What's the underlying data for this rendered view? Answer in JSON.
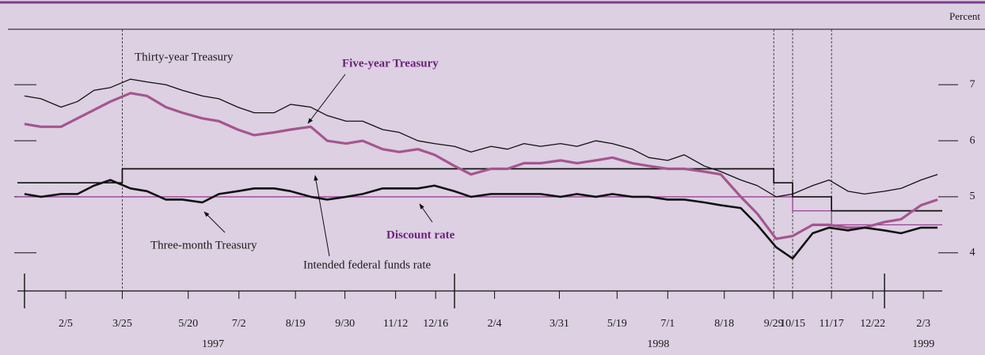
{
  "chart_data": {
    "type": "line",
    "ylabel": "Percent",
    "xlim": [
      "1996-12-26",
      "1999-02-19"
    ],
    "ylim": [
      3.32,
      7.99
    ],
    "yticks": [
      4,
      5,
      6,
      7
    ],
    "xticks": [
      {
        "value": "1997-02-05",
        "label": "2/5"
      },
      {
        "value": "1997-03-25",
        "label": "3/25"
      },
      {
        "value": "1997-05-20",
        "label": "5/20"
      },
      {
        "value": "1997-07-02",
        "label": "7/2"
      },
      {
        "value": "1997-08-19",
        "label": "8/19"
      },
      {
        "value": "1997-09-30",
        "label": "9/30"
      },
      {
        "value": "1997-11-12",
        "label": "11/12"
      },
      {
        "value": "1997-12-16",
        "label": "12/16"
      },
      {
        "value": "1998-02-04",
        "label": "2/4"
      },
      {
        "value": "1998-03-31",
        "label": "3/31"
      },
      {
        "value": "1998-05-19",
        "label": "5/19"
      },
      {
        "value": "1998-07-01",
        "label": "7/1"
      },
      {
        "value": "1998-08-18",
        "label": "8/18"
      },
      {
        "value": "1998-09-29",
        "label": "9/29"
      },
      {
        "value": "1998-10-15",
        "label": "10/15"
      },
      {
        "value": "1998-11-17",
        "label": "11/17"
      },
      {
        "value": "1998-12-22",
        "label": "12/22"
      },
      {
        "value": "1999-02-03",
        "label": "2/3"
      }
    ],
    "year_ticks": [
      {
        "value": "1997-01-01",
        "label": "1997"
      },
      {
        "value": "1998-01-01",
        "label": "1998"
      },
      {
        "value": "1999-01-01",
        "label": "1999"
      }
    ],
    "year_label_x": [
      "1997-06-10",
      "1998-06-23",
      "1999-02-03"
    ],
    "event_lines": [
      "1997-03-25",
      "1998-09-29",
      "1998-10-15",
      "1998-11-17"
    ],
    "x": [
      "1997-01-01",
      "1997-01-15",
      "1997-02-01",
      "1997-02-15",
      "1997-03-01",
      "1997-03-15",
      "1997-04-01",
      "1997-04-15",
      "1997-05-01",
      "1997-05-15",
      "1997-06-01",
      "1997-06-15",
      "1997-07-01",
      "1997-07-15",
      "1997-08-01",
      "1997-08-15",
      "1997-09-01",
      "1997-09-15",
      "1997-10-01",
      "1997-10-15",
      "1997-11-01",
      "1997-11-15",
      "1997-12-01",
      "1997-12-15",
      "1998-01-01",
      "1998-01-15",
      "1998-02-01",
      "1998-02-15",
      "1998-03-01",
      "1998-03-15",
      "1998-04-01",
      "1998-04-15",
      "1998-05-01",
      "1998-05-15",
      "1998-06-01",
      "1998-06-15",
      "1998-07-01",
      "1998-07-15",
      "1998-08-01",
      "1998-08-15",
      "1998-09-01",
      "1998-09-15",
      "1998-10-01",
      "1998-10-15",
      "1998-11-01",
      "1998-11-15",
      "1998-12-01",
      "1998-12-15",
      "1999-01-01",
      "1999-01-15",
      "1999-02-01",
      "1999-02-15"
    ],
    "series": [
      {
        "name": "Thirty-year Treasury",
        "color": "#111111",
        "width": 1.3,
        "values": [
          6.8,
          6.75,
          6.6,
          6.7,
          6.9,
          6.95,
          7.1,
          7.05,
          7.0,
          6.9,
          6.8,
          6.75,
          6.6,
          6.5,
          6.5,
          6.65,
          6.6,
          6.45,
          6.35,
          6.35,
          6.2,
          6.15,
          6.0,
          5.95,
          5.9,
          5.8,
          5.9,
          5.85,
          5.95,
          5.9,
          5.95,
          5.9,
          6.0,
          5.95,
          5.85,
          5.7,
          5.65,
          5.75,
          5.55,
          5.45,
          5.3,
          5.2,
          5.0,
          5.05,
          5.2,
          5.3,
          5.1,
          5.05,
          5.1,
          5.15,
          5.3,
          5.4
        ]
      },
      {
        "name": "Five-year Treasury",
        "color": "#a5558f",
        "width": 3.2,
        "values": [
          6.3,
          6.25,
          6.25,
          6.4,
          6.55,
          6.7,
          6.85,
          6.8,
          6.6,
          6.5,
          6.4,
          6.35,
          6.2,
          6.1,
          6.15,
          6.2,
          6.25,
          6.0,
          5.95,
          6.0,
          5.85,
          5.8,
          5.85,
          5.75,
          5.55,
          5.4,
          5.5,
          5.5,
          5.6,
          5.6,
          5.65,
          5.6,
          5.65,
          5.7,
          5.6,
          5.55,
          5.5,
          5.5,
          5.45,
          5.4,
          5.0,
          4.7,
          4.25,
          4.3,
          4.5,
          4.5,
          4.45,
          4.45,
          4.55,
          4.6,
          4.85,
          4.95
        ]
      },
      {
        "name": "Three-month Treasury",
        "color": "#111111",
        "width": 2.6,
        "values": [
          5.05,
          5.0,
          5.05,
          5.05,
          5.2,
          5.3,
          5.15,
          5.1,
          4.95,
          4.95,
          4.9,
          5.05,
          5.1,
          5.15,
          5.15,
          5.1,
          5.0,
          4.95,
          5.0,
          5.05,
          5.15,
          5.15,
          5.15,
          5.2,
          5.1,
          5.0,
          5.05,
          5.05,
          5.05,
          5.05,
          5.0,
          5.05,
          5.0,
          5.05,
          5.0,
          5.0,
          4.95,
          4.95,
          4.9,
          4.85,
          4.8,
          4.5,
          4.1,
          3.9,
          4.35,
          4.45,
          4.4,
          4.45,
          4.4,
          4.35,
          4.45,
          4.45
        ]
      },
      {
        "name": "Intended federal funds rate",
        "color": "#111111",
        "width": 1.7,
        "step": true,
        "x": [
          "1996-12-26",
          "1997-03-25",
          "1998-09-29",
          "1998-10-15",
          "1998-11-17",
          "1999-02-19"
        ],
        "values": [
          5.25,
          5.5,
          5.25,
          5.0,
          4.75,
          4.75
        ]
      },
      {
        "name": "Discount rate",
        "color": "#9b3f95",
        "width": 1.3,
        "step": true,
        "x": [
          "1996-12-26",
          "1998-10-15",
          "1998-11-17",
          "1999-02-19"
        ],
        "values": [
          5.0,
          4.75,
          4.5,
          4.5
        ]
      }
    ]
  }
}
